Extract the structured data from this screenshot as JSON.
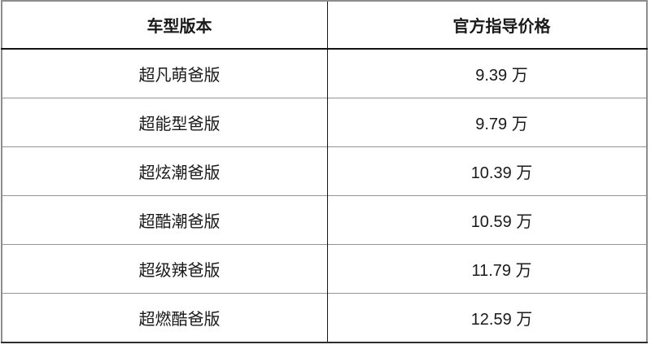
{
  "chart_data": {
    "type": "table",
    "columns": [
      "车型版本",
      "官方指导价格"
    ],
    "rows": [
      [
        "超凡萌爸版",
        "9.39 万"
      ],
      [
        "超能型爸版",
        "9.79 万"
      ],
      [
        "超炫潮爸版",
        "10.39 万"
      ],
      [
        "超酷潮爸版",
        "10.59 万"
      ],
      [
        "超级辣爸版",
        "11.79 万"
      ],
      [
        "超燃酷爸版",
        "12.59 万"
      ]
    ],
    "prices_wan": [
      9.39,
      9.79,
      10.39,
      10.59,
      11.79,
      12.59
    ],
    "unit": "万",
    "legend": "none",
    "grid": "full table borders"
  },
  "colors": {
    "text": "#1a1a1a",
    "border_outer": "#8d8d8d",
    "border_inner": "#141414",
    "row_divider": "#949494",
    "border_bottom": "#2e2e2e",
    "background": "#ffffff"
  }
}
